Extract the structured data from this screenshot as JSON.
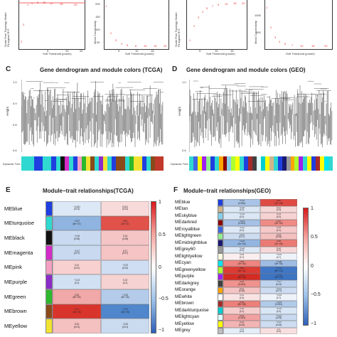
{
  "panels": {
    "top": {
      "y_scale_free": "Scale Free Topology Model Fit,signed R^2",
      "y_mean": "Mean Connectivity",
      "x_power": "Soft Threshold (power)",
      "ticks_x": [
        "5",
        "10",
        "15",
        "20"
      ],
      "ticks_x2": [
        "5",
        "10",
        "15",
        "20"
      ],
      "mean_ticks_left": [
        "200",
        "150",
        "100",
        "50"
      ],
      "mean_ticks_right": [
        "2000",
        "1500",
        "1000",
        "500"
      ],
      "sf_ticks": [
        "0.8",
        "0.6",
        "0.4",
        "0.2",
        "0.0"
      ]
    },
    "c": {
      "letter": "C",
      "title": "Gene dendrogram and module colors (TCGA)",
      "y_label": "Height",
      "strip_label": "Dynamic Tree Cut",
      "y_ticks": [
        "1.0",
        "0.9",
        "0.8",
        "0.7",
        "0.6"
      ]
    },
    "d": {
      "letter": "D",
      "title": "Gene dendrogram and module colors (GEO)",
      "y_label": "Height",
      "strip_label": "Dynamic Tree Cut",
      "y_ticks": [
        "1.0",
        "0.9",
        "0.8",
        "0.7",
        "0.6"
      ]
    },
    "e": {
      "letter": "E",
      "title": "Module−trait relationships(TCGA)",
      "colorbar_ticks": [
        "1",
        "0.5",
        "0",
        "−0.5",
        "−1"
      ],
      "modules": [
        {
          "name": "MEblue",
          "color": "#1f3fe0",
          "c1": "−0.021\n(0.02)",
          "c2": "0.021\n(0.02)"
        },
        {
          "name": "MEturquoise",
          "color": "#2fd8d0",
          "c1": "−0.37\n(5e−07)",
          "c2": "0.51\n(2e−07)"
        },
        {
          "name": "MEblack",
          "color": "#111111",
          "c1": "−0.16\n(0.08)",
          "c2": "0.16\n(0.08)"
        },
        {
          "name": "MEmagenta",
          "color": "#d42cc8",
          "c1": "−0.17\n(0.07)",
          "c2": "0.17\n(0.07)"
        },
        {
          "name": "MEpink",
          "color": "#f3a0c4",
          "c1": "0.22\n(0.02)",
          "c2": "−0.22\n(0.02)"
        },
        {
          "name": "MEpurple",
          "color": "#8b2cc8",
          "c1": "−0.13\n(0.2)",
          "c2": "0.13\n(0.2)"
        },
        {
          "name": "MEgreen",
          "color": "#2db82d",
          "c1": "0.32\n(5e−04)",
          "c2": "−0.32\n(5e−04)"
        },
        {
          "name": "MEbrown",
          "color": "#8a4a1a",
          "c1": "0.71\n(3e−19)",
          "c2": "−0.71\n(3e−19)"
        },
        {
          "name": "MEyellow",
          "color": "#f2e230",
          "c1": "0.23\n(0.01)",
          "c2": "−0.23\n(0.01)"
        }
      ],
      "cell_colors": [
        [
          "#dde8f6",
          "#f8dada"
        ],
        [
          "#8fb4df",
          "#e0524a"
        ],
        [
          "#c9daf0",
          "#f5c5c5"
        ],
        [
          "#c8d9f0",
          "#f6c4c4"
        ],
        [
          "#f8d0d0",
          "#cfdef2"
        ],
        [
          "#d2e0f3",
          "#f6d2d2"
        ],
        [
          "#f1a8a8",
          "#b4ccea"
        ],
        [
          "#d9342c",
          "#4f86cc"
        ],
        [
          "#f4c0c0",
          "#cadbf0"
        ]
      ]
    },
    "f": {
      "letter": "F",
      "title": "Module−trait relationships(GEO)",
      "colorbar_ticks": [
        "1",
        "0.5",
        "0",
        "−0.5",
        "−1"
      ],
      "modules": [
        {
          "name": "MEblue",
          "color": "#1f3fe0",
          "c1": "−0.32\n(0.006)",
          "c2": "0.62\n(4e−09)"
        },
        {
          "name": "MEtan",
          "color": "#d2b48c",
          "c1": "−0.14\n(0.2)",
          "c2": "0.11\n(0.3)"
        },
        {
          "name": "MEskyblue",
          "color": "#87ceeb",
          "c1": "−0.14\n(0.2)",
          "c2": "0.14\n(0.2)"
        },
        {
          "name": "MEdarkred",
          "color": "#8b0000",
          "c1": "−0.33\n(0.004)",
          "c2": "0.42\n(2e−04)"
        },
        {
          "name": "MEroyalblue",
          "color": "#4169e1",
          "c1": "−0.12\n(0.3)",
          "c2": "0.19\n(0.1)"
        },
        {
          "name": "MElightgreen",
          "color": "#90ee90",
          "c1": "−0.21\n(0.07)",
          "c2": "0.23\n(0.05)"
        },
        {
          "name": "MEmidnightblue",
          "color": "#191970",
          "c1": "−0.43\n(2e−04)",
          "c2": "0.48\n(2e−05)"
        },
        {
          "name": "MEgrey60",
          "color": "#999999",
          "c1": "−0.13\n(0.3)",
          "c2": "0.12\n(0.3)"
        },
        {
          "name": "MElightyellow",
          "color": "#ffffe0",
          "c1": "0.05\n(0.7)",
          "c2": "−0.04\n(0.7)"
        },
        {
          "name": "MEcyan",
          "color": "#00e5ee",
          "c1": "0.44\n(1e−04)",
          "c2": "−0.38\n(9e−04)"
        },
        {
          "name": "MEgreenyellow",
          "color": "#adff2f",
          "c1": "0.69\n(1e−11)",
          "c2": "−0.72\n(5e−13)"
        },
        {
          "name": "MEpurple",
          "color": "#a020f0",
          "c1": "0.76\n(5e−15)",
          "c2": "−0.73\n(2e−13)"
        },
        {
          "name": "MEdarkgrey",
          "color": "#404040",
          "c1": "0.35\n(0.003)",
          "c2": "−0.27\n(0.02)"
        },
        {
          "name": "MEorange",
          "color": "#ffa500",
          "c1": "0.22\n(0.06)",
          "c2": "−0.21\n(0.07)"
        },
        {
          "name": "MEwhite",
          "color": "#ffffff",
          "c1": "0.11\n(0.4)",
          "c2": "−0.04\n(0.7)"
        },
        {
          "name": "MEbrown",
          "color": "#a52a2a",
          "c1": "0.45\n(6e−05)",
          "c2": "−0.33\n(0.004)"
        },
        {
          "name": "MEdarkturquoise",
          "color": "#00ced1",
          "c1": "0.19\n(0.1)",
          "c2": "−0.14\n(0.2)"
        },
        {
          "name": "MElightcyan",
          "color": "#e0ffff",
          "c1": "0.33\n(0.004)",
          "c2": "−0.23\n(0.05)"
        },
        {
          "name": "MEyellow",
          "color": "#ffff00",
          "c1": "0.25\n(0.03)",
          "c2": "−0.22\n(0.06)"
        },
        {
          "name": "MEgrey",
          "color": "#bebebe",
          "c1": "−0.1\n(0.4)",
          "c2": "0.1\n(0.4)"
        }
      ],
      "cell_colors": [
        [
          "#a9c4e6",
          "#e04a44"
        ],
        [
          "#dbe7f5",
          "#f7d6d6"
        ],
        [
          "#dbe7f5",
          "#f6d2d2"
        ],
        [
          "#a6c1e5",
          "#f08a86"
        ],
        [
          "#dfe9f6",
          "#f5c9c9"
        ],
        [
          "#cddcf1",
          "#f4c0c0"
        ],
        [
          "#93b6e1",
          "#ec7a74"
        ],
        [
          "#dde8f6",
          "#f7d8d8"
        ],
        [
          "#fbeeee",
          "#eef3fa"
        ],
        [
          "#ee8580",
          "#9fbde4"
        ],
        [
          "#dc3b33",
          "#3f77c6"
        ],
        [
          "#d52b24",
          "#3c74c4"
        ],
        [
          "#f0928d",
          "#bfd3ee"
        ],
        [
          "#f4c3c3",
          "#cddcf1"
        ],
        [
          "#f9e2e2",
          "#eef3fa"
        ],
        [
          "#ec7f79",
          "#b1cae9"
        ],
        [
          "#f6cdcd",
          "#d9e6f5"
        ],
        [
          "#f1a1a0",
          "#c8d9f0"
        ],
        [
          "#f3b4b4",
          "#cddcf1"
        ],
        [
          "#e5edf8",
          "#f9e0e0"
        ]
      ]
    }
  }
}
